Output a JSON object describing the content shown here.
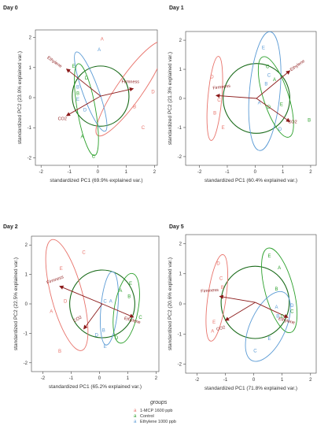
{
  "colors": {
    "mcp": "#e8736b",
    "control": "#2ca02c",
    "ethylene": "#5b9bd5",
    "circle": "#1a6b1a",
    "arrow": "#8b1a1a",
    "arrow_label": "#8b1a1a"
  },
  "legend": {
    "title": "groups",
    "items": [
      {
        "label": "1-MCP 1600 ppb",
        "color_key": "mcp"
      },
      {
        "label": "Control",
        "color_key": "control"
      },
      {
        "label": "Ethylene 1000 ppb",
        "color_key": "ethylene"
      }
    ]
  },
  "chart_data": [
    {
      "type": "scatter",
      "title": "Day 0",
      "xlabel": "standardized PC1 (69.9% explained var.)",
      "ylabel": "standardized PC2 (23.0% explained var.)",
      "xlim": [
        -2.2,
        2.1
      ],
      "ylim": [
        -2.25,
        2.25
      ],
      "xticks": [
        -2,
        -1,
        0,
        1,
        2
      ],
      "yticks": [
        -2,
        -1,
        0,
        1,
        2
      ],
      "circle": {
        "cx": 0.1,
        "cy": 0.05,
        "r": 1.0
      },
      "arrow_origin": [
        0.1,
        0.05
      ],
      "arrows": [
        {
          "label": "Ethylene",
          "end": [
            -1.1,
            0.95
          ],
          "label_at": [
            -1.55,
            1.15
          ],
          "rot": 35
        },
        {
          "label": "Firmness",
          "end": [
            1.25,
            0.3
          ],
          "label_at": [
            1.15,
            0.48
          ],
          "rot": 0
        },
        {
          "label": "CO2",
          "end": [
            -1.1,
            -0.6
          ],
          "label_at": [
            -1.25,
            -0.75
          ],
          "rot": 0
        }
      ],
      "ellipses": [
        {
          "group": "mcp",
          "cx": 1.15,
          "cy": 0.3,
          "rx": 0.45,
          "ry": 1.9,
          "angle": 35
        },
        {
          "group": "ethylene",
          "cx": -0.25,
          "cy": 0.2,
          "rx": 0.28,
          "ry": 1.4,
          "angle": -20
        },
        {
          "group": "control",
          "cx": -0.4,
          "cy": -0.4,
          "rx": 0.32,
          "ry": 1.55,
          "angle": -10
        }
      ],
      "points": [
        {
          "group": "mcp",
          "label": "A",
          "x": 0.15,
          "y": 1.95
        },
        {
          "group": "mcp",
          "label": "D",
          "x": 1.95,
          "y": 0.2
        },
        {
          "group": "mcp",
          "label": "B",
          "x": 1.3,
          "y": -0.3
        },
        {
          "group": "mcp",
          "label": "C",
          "x": 1.6,
          "y": -1.0
        },
        {
          "group": "ethylene",
          "label": "A",
          "x": 0.05,
          "y": 1.6
        },
        {
          "group": "ethylene",
          "label": "B",
          "x": -0.7,
          "y": 0.35
        },
        {
          "group": "ethylene",
          "label": "E",
          "x": -0.7,
          "y": -0.05
        },
        {
          "group": "ethylene",
          "label": "D",
          "x": -0.45,
          "y": -0.4
        },
        {
          "group": "control",
          "label": "E",
          "x": -0.85,
          "y": 1.05
        },
        {
          "group": "control",
          "label": "D",
          "x": -0.4,
          "y": 0.65
        },
        {
          "group": "control",
          "label": "B",
          "x": -0.7,
          "y": 0.15
        },
        {
          "group": "control",
          "label": "A",
          "x": -0.55,
          "y": -1.3
        },
        {
          "group": "control",
          "label": "C",
          "x": -0.15,
          "y": -1.95
        }
      ]
    },
    {
      "type": "scatter",
      "title": "Day 1",
      "xlabel": "standardized PC1 (60.4% explained var.)",
      "ylabel": "standardized PC2 (21.3% explained var.)",
      "xlim": [
        -2.5,
        2.2
      ],
      "ylim": [
        -2.3,
        2.3
      ],
      "xticks": [
        -2,
        -1,
        0,
        1,
        2
      ],
      "yticks": [
        -2,
        -1,
        0,
        1,
        2
      ],
      "circle": {
        "cx": 0.05,
        "cy": 0.0,
        "r": 1.2
      },
      "arrow_origin": [
        0.05,
        0.0
      ],
      "arrows": [
        {
          "label": "Ethylene",
          "end": [
            1.25,
            0.95
          ],
          "label_at": [
            1.55,
            1.1
          ],
          "rot": -35
        },
        {
          "label": "Firmness",
          "end": [
            -1.4,
            0.1
          ],
          "label_at": [
            -1.2,
            0.35
          ],
          "rot": -8
        },
        {
          "label": "CO2",
          "end": [
            1.25,
            -0.8
          ],
          "label_at": [
            1.35,
            -0.85
          ],
          "rot": 0
        }
      ],
      "ellipses": [
        {
          "group": "mcp",
          "cx": -1.45,
          "cy": 0.0,
          "rx": 0.25,
          "ry": 1.45,
          "angle": 5
        },
        {
          "group": "ethylene",
          "cx": 0.35,
          "cy": 0.25,
          "rx": 0.55,
          "ry": 2.05,
          "angle": 5
        },
        {
          "group": "control",
          "cx": 0.75,
          "cy": 0.05,
          "rx": 0.45,
          "ry": 1.45,
          "angle": -18
        }
      ],
      "points": [
        {
          "group": "mcp",
          "label": "D",
          "x": -1.55,
          "y": 0.75
        },
        {
          "group": "mcp",
          "label": "C",
          "x": -1.3,
          "y": -0.05
        },
        {
          "group": "mcp",
          "label": "B",
          "x": -1.45,
          "y": -0.5
        },
        {
          "group": "mcp",
          "label": "E",
          "x": -1.15,
          "y": -1.0
        },
        {
          "group": "ethylene",
          "label": "E",
          "x": 0.3,
          "y": 1.75
        },
        {
          "group": "ethylene",
          "label": "C",
          "x": 0.5,
          "y": 0.8
        },
        {
          "group": "ethylene",
          "label": "B",
          "x": 0.4,
          "y": 0.5
        },
        {
          "group": "ethylene",
          "label": "A",
          "x": 0.15,
          "y": -0.15
        },
        {
          "group": "ethylene",
          "label": "D",
          "x": 0.9,
          "y": -1.05
        },
        {
          "group": "control",
          "label": "C",
          "x": 0.45,
          "y": 1.1
        },
        {
          "group": "control",
          "label": "A",
          "x": 0.7,
          "y": 0.65
        },
        {
          "group": "control",
          "label": "D",
          "x": 0.5,
          "y": -0.3
        },
        {
          "group": "control",
          "label": "E",
          "x": 0.95,
          "y": -0.2
        },
        {
          "group": "control",
          "label": "B",
          "x": 1.95,
          "y": -0.75
        }
      ]
    },
    {
      "type": "scatter",
      "title": "Day 2",
      "xlabel": "standardized PC1 (65.2% explained var.)",
      "ylabel": "standardized PC2 (22.5% explained var.)",
      "xlim": [
        -2.4,
        2.1
      ],
      "ylim": [
        -2.3,
        2.3
      ],
      "xticks": [
        -2,
        -1,
        0,
        1,
        2
      ],
      "yticks": [
        -2,
        -1,
        0,
        1,
        2
      ],
      "circle": {
        "cx": 0.1,
        "cy": 0.0,
        "r": 1.15
      },
      "arrow_origin": [
        0.1,
        0.0
      ],
      "arrows": [
        {
          "label": "Firmness",
          "end": [
            -1.4,
            0.6
          ],
          "label_at": [
            -1.55,
            0.78
          ],
          "rot": -20
        },
        {
          "label": "Ethylene",
          "end": [
            1.2,
            -0.45
          ],
          "label_at": [
            1.15,
            -0.6
          ],
          "rot": 15
        },
        {
          "label": "CO2",
          "end": [
            -0.55,
            -0.85
          ],
          "label_at": [
            -0.75,
            -0.55
          ],
          "rot": -30
        }
      ],
      "ellipses": [
        {
          "group": "mcp",
          "cx": -1.15,
          "cy": 0.3,
          "rx": 0.55,
          "ry": 1.95,
          "angle": -15
        },
        {
          "group": "ethylene",
          "cx": 0.35,
          "cy": -0.15,
          "rx": 0.3,
          "ry": 1.25,
          "angle": 5
        },
        {
          "group": "control",
          "cx": 0.95,
          "cy": -0.15,
          "rx": 0.42,
          "ry": 1.2,
          "angle": 10
        }
      ],
      "points": [
        {
          "group": "mcp",
          "label": "C",
          "x": -0.55,
          "y": 1.75
        },
        {
          "group": "mcp",
          "label": "E",
          "x": -1.35,
          "y": 1.2
        },
        {
          "group": "mcp",
          "label": "D",
          "x": -1.2,
          "y": 0.1
        },
        {
          "group": "mcp",
          "label": "A",
          "x": -1.7,
          "y": -0.25
        },
        {
          "group": "mcp",
          "label": "B",
          "x": -1.4,
          "y": -1.6
        },
        {
          "group": "ethylene",
          "label": "C",
          "x": 0.2,
          "y": 0.1
        },
        {
          "group": "ethylene",
          "label": "A",
          "x": 0.4,
          "y": 0.1
        },
        {
          "group": "ethylene",
          "label": "B",
          "x": 0.15,
          "y": -0.9
        },
        {
          "group": "ethylene",
          "label": "D",
          "x": -0.1,
          "y": -1.05
        },
        {
          "group": "ethylene",
          "label": "E",
          "x": 0.2,
          "y": -1.45
        },
        {
          "group": "control",
          "label": "E",
          "x": 1.1,
          "y": 0.7
        },
        {
          "group": "control",
          "label": "A",
          "x": 0.75,
          "y": 0.45
        },
        {
          "group": "control",
          "label": "B",
          "x": 1.05,
          "y": 0.25
        },
        {
          "group": "control",
          "label": "C",
          "x": 1.45,
          "y": -0.45
        },
        {
          "group": "control",
          "label": "D",
          "x": 0.6,
          "y": -1.15
        }
      ]
    },
    {
      "type": "scatter",
      "title": "Day 5",
      "xlabel": "standardized PC1 (71.8% explained var.)",
      "ylabel": "standardized PC2 (20.6% explained var.)",
      "xlim": [
        -2.4,
        2.2
      ],
      "ylim": [
        -2.3,
        2.3
      ],
      "xticks": [
        -2,
        -1,
        0,
        1,
        2
      ],
      "yticks": [
        -2,
        -1,
        0,
        1,
        2
      ],
      "circle": {
        "cx": 0.05,
        "cy": 0.05,
        "r": 1.2
      },
      "arrow_origin": [
        0.05,
        0.05
      ],
      "arrows": [
        {
          "label": "Firmness",
          "end": [
            -1.2,
            0.25
          ],
          "label_at": [
            -1.55,
            0.4
          ],
          "rot": -5
        },
        {
          "label": "Ethylene",
          "end": [
            1.2,
            -0.45
          ],
          "label_at": [
            1.15,
            -0.6
          ],
          "rot": 15
        },
        {
          "label": "CO2",
          "end": [
            -1.0,
            -0.55
          ],
          "label_at": [
            -1.15,
            -0.85
          ],
          "rot": -15
        }
      ],
      "ellipses": [
        {
          "group": "mcp",
          "cx": -1.3,
          "cy": 0.2,
          "rx": 0.32,
          "ry": 1.45,
          "angle": 8
        },
        {
          "group": "control",
          "cx": 0.9,
          "cy": 0.45,
          "rx": 0.5,
          "ry": 1.45,
          "angle": -15
        },
        {
          "group": "ethylene",
          "cx": 0.5,
          "cy": -0.75,
          "rx": 0.62,
          "ry": 1.25,
          "angle": 25
        }
      ],
      "points": [
        {
          "group": "mcp",
          "label": "D",
          "x": -1.25,
          "y": 1.35
        },
        {
          "group": "mcp",
          "label": "C",
          "x": -1.15,
          "y": 0.85
        },
        {
          "group": "mcp",
          "label": "B",
          "x": -1.1,
          "y": 0.55
        },
        {
          "group": "mcp",
          "label": "E",
          "x": -1.4,
          "y": -0.6
        },
        {
          "group": "mcp",
          "label": "A",
          "x": -1.45,
          "y": -0.9
        },
        {
          "group": "control",
          "label": "E",
          "x": 0.55,
          "y": 1.6
        },
        {
          "group": "control",
          "label": "A",
          "x": 0.9,
          "y": 1.2
        },
        {
          "group": "control",
          "label": "B",
          "x": 0.8,
          "y": 0.5
        },
        {
          "group": "control",
          "label": "C",
          "x": 1.35,
          "y": -0.25
        },
        {
          "group": "control",
          "label": "D",
          "x": 1.0,
          "y": -0.4
        },
        {
          "group": "ethylene",
          "label": "D",
          "x": 1.35,
          "y": -0.05
        },
        {
          "group": "ethylene",
          "label": "A",
          "x": 0.8,
          "y": -0.1
        },
        {
          "group": "ethylene",
          "label": "B",
          "x": 0.85,
          "y": -0.4
        },
        {
          "group": "ethylene",
          "label": "E",
          "x": 0.55,
          "y": -1.15
        },
        {
          "group": "ethylene",
          "label": "C",
          "x": 0.05,
          "y": -1.55
        }
      ]
    }
  ]
}
